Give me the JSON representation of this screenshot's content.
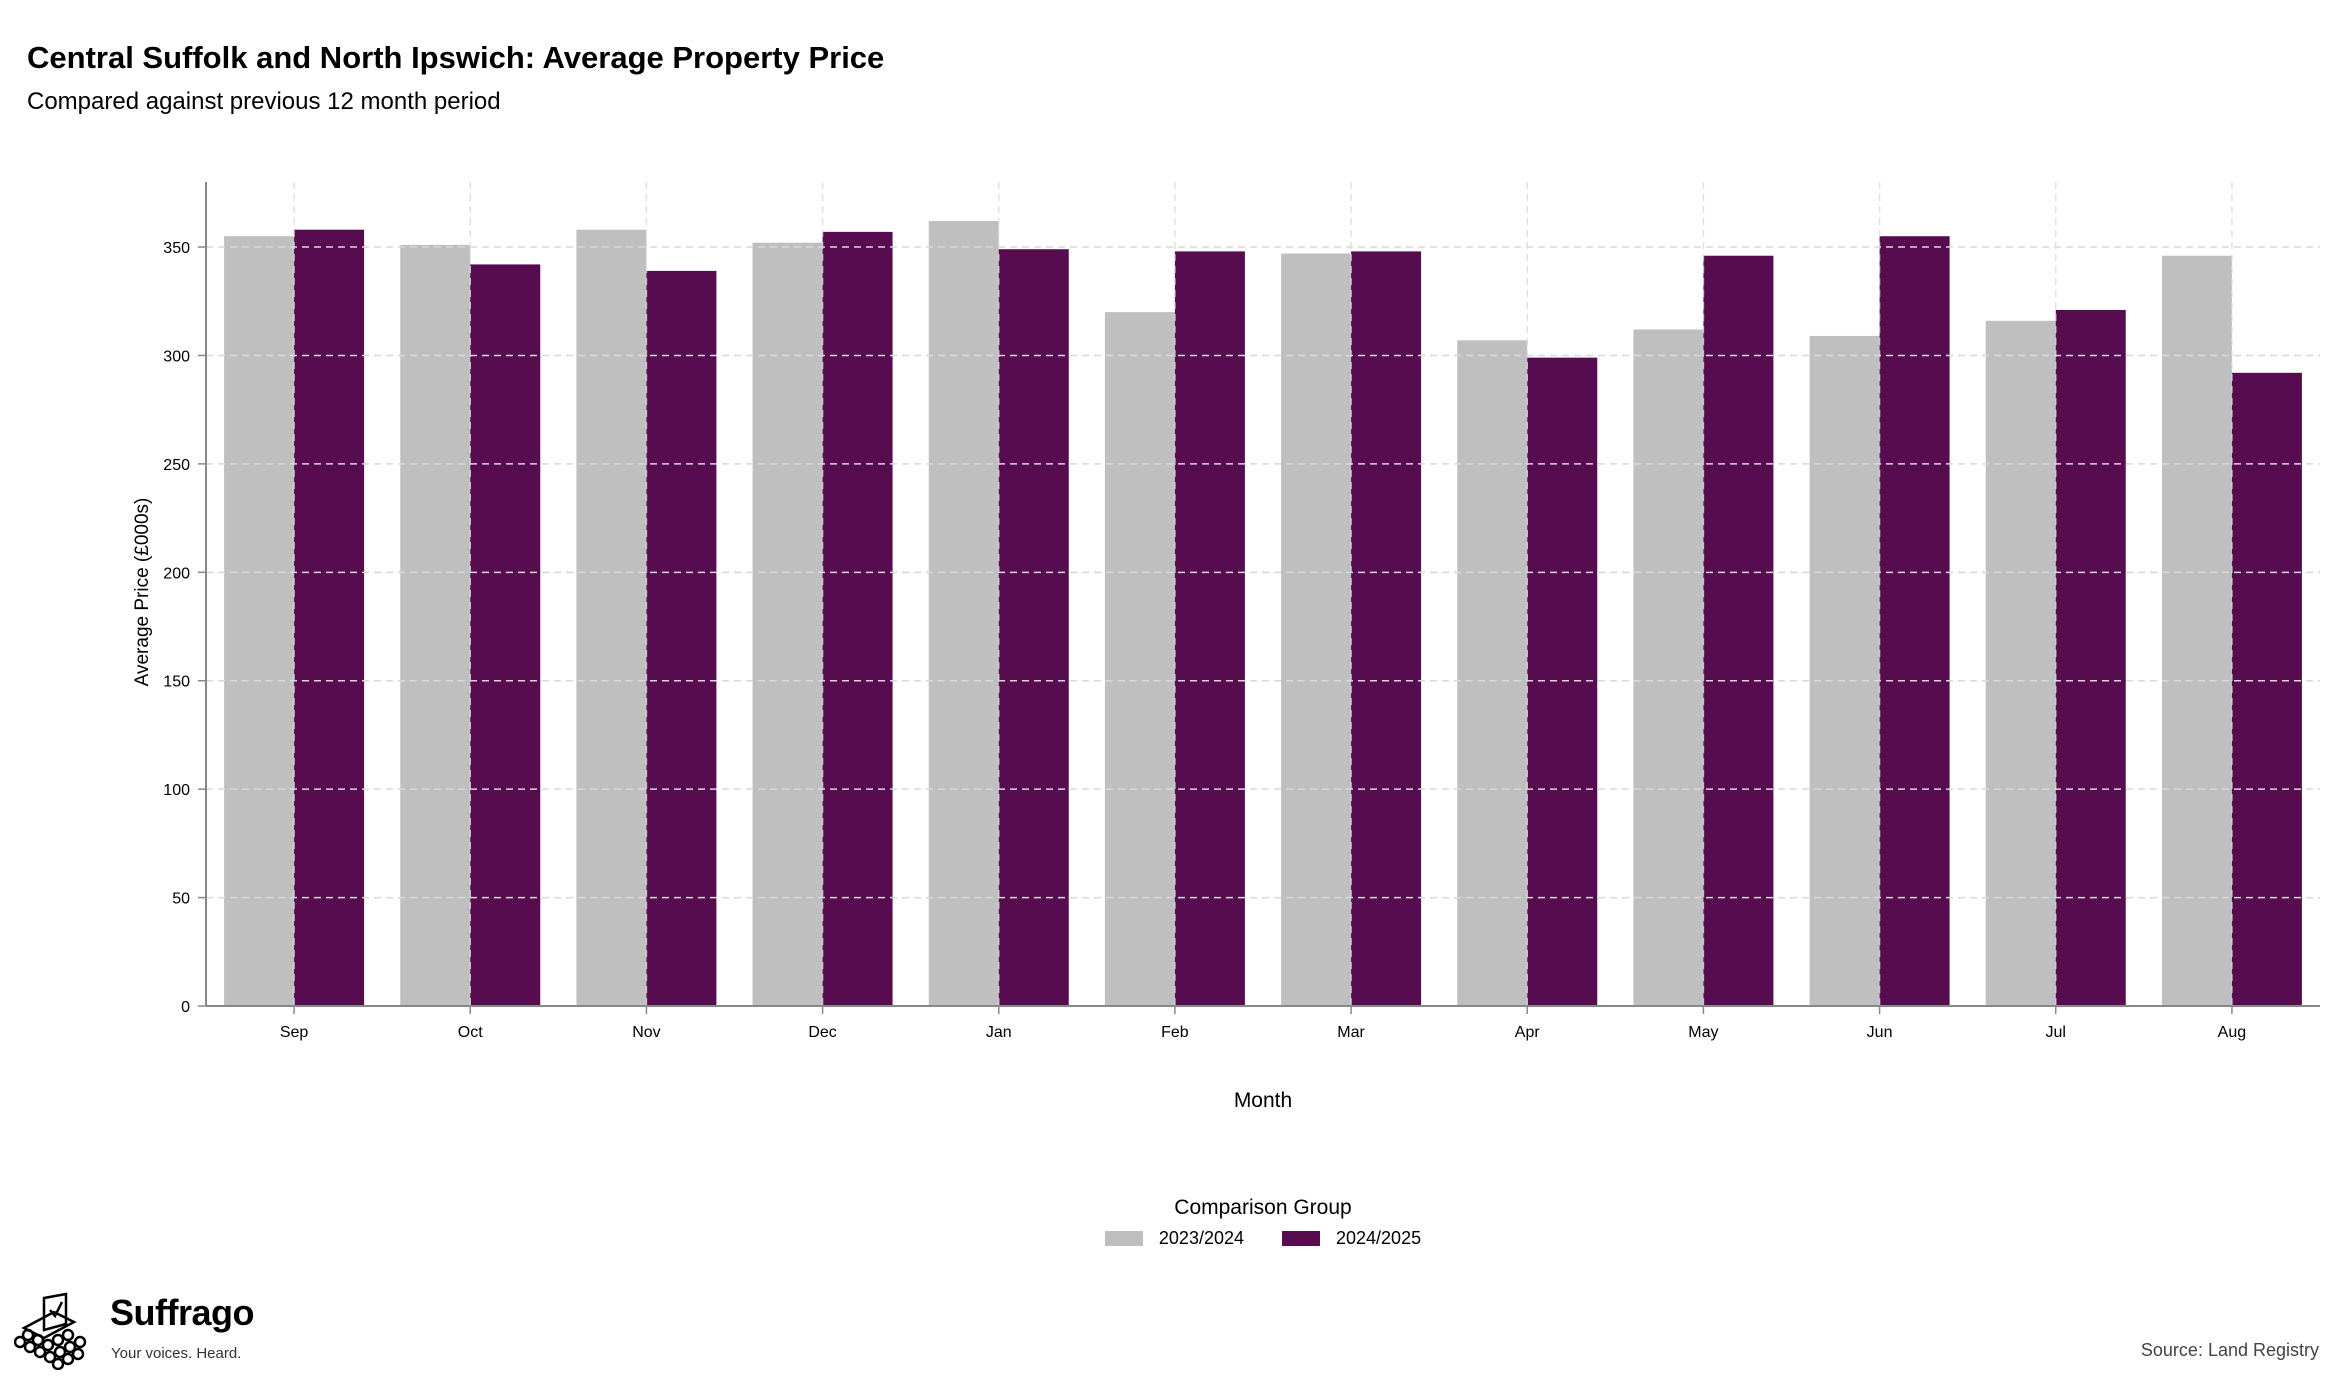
{
  "header": {
    "title": "Central Suffolk and North Ipswich: Average Property Price",
    "subtitle": "Compared against previous 12 month period"
  },
  "chart_data": {
    "type": "bar",
    "categories": [
      "Sep",
      "Oct",
      "Nov",
      "Dec",
      "Jan",
      "Feb",
      "Mar",
      "Apr",
      "May",
      "Jun",
      "Jul",
      "Aug"
    ],
    "series": [
      {
        "name": "2023/2024",
        "color": "#bfbfbf",
        "values": [
          355,
          351,
          358,
          352,
          362,
          320,
          347,
          307,
          312,
          309,
          316,
          346
        ]
      },
      {
        "name": "2024/2025",
        "color": "#560c4f",
        "values": [
          358,
          342,
          339,
          357,
          349,
          348,
          348,
          299,
          346,
          355,
          321,
          292
        ]
      }
    ],
    "xlabel": "Month",
    "ylabel": "Average Price (£000s)",
    "ylim": [
      0,
      380
    ],
    "yticks": [
      0,
      50,
      100,
      150,
      200,
      250,
      300,
      350
    ],
    "grid": true,
    "legend_title": "Comparison Group",
    "legend_position": "bottom"
  },
  "footer": {
    "brand_name": "Suffrago",
    "brand_tagline": "Your voices. Heard.",
    "source": "Source: Land Registry"
  }
}
